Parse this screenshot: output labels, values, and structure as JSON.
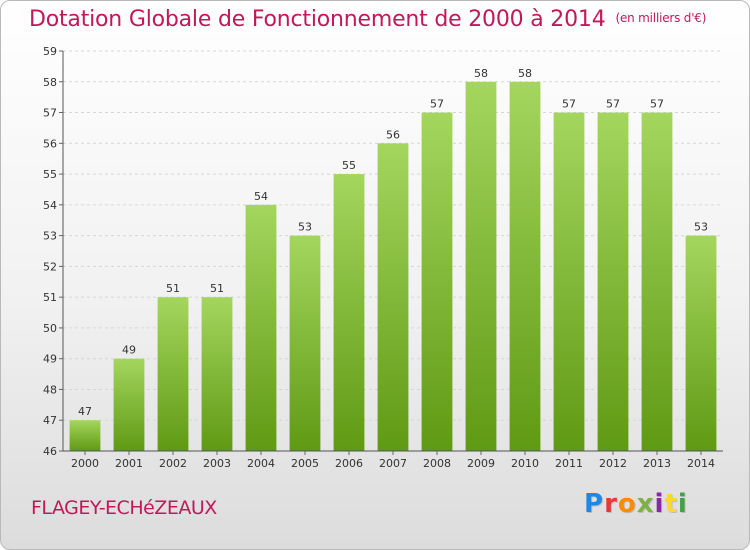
{
  "title": "Dotation Globale de Fonctionnement de 2000 à 2014",
  "unit_note": "(en milliers d'€)",
  "commune": "FLAGEY-ECHéZEAUX",
  "logo": {
    "text": "Proxiti",
    "letter_colors": [
      "#1e88e5",
      "#e53935",
      "#fb8c00",
      "#7cb342",
      "#8e24aa",
      "#fdd835",
      "#43a047"
    ]
  },
  "colors": {
    "title": "#c2185b",
    "bar_top": "#a4d65e",
    "bar_bottom": "#5f9a14"
  },
  "chart_data": {
    "type": "bar",
    "categories": [
      "2000",
      "2001",
      "2002",
      "2003",
      "2004",
      "2005",
      "2006",
      "2007",
      "2008",
      "2009",
      "2010",
      "2011",
      "2012",
      "2013",
      "2014"
    ],
    "values": [
      47,
      49,
      51,
      51,
      54,
      53,
      55,
      56,
      57,
      58,
      58,
      57,
      57,
      57,
      53
    ],
    "ylim": [
      46,
      59
    ],
    "yticks": [
      46,
      47,
      48,
      49,
      50,
      51,
      52,
      53,
      54,
      55,
      56,
      57,
      58,
      59
    ],
    "grid": true,
    "data_labels": true
  }
}
